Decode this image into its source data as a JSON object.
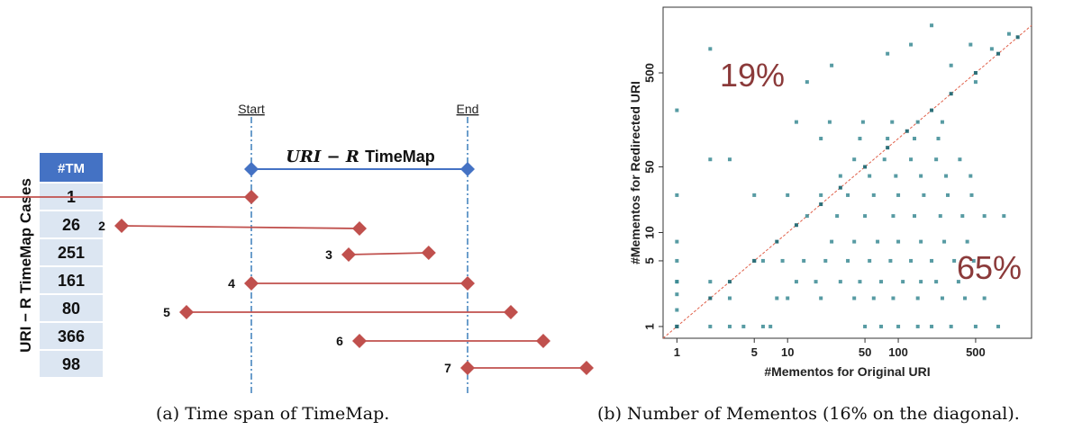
{
  "figure_a": {
    "caption": "(a) Time span of TimeMap.",
    "side_label": "URI − R TimeMap Cases",
    "side_label_var": "R",
    "start_label": "Start",
    "end_label": "End",
    "timemap_title_italic": "URI − R",
    "timemap_title_rest": "TimeMap",
    "table_header": "#TM",
    "colors": {
      "header_bg": "#4472c4",
      "cell_bg": "#dce6f2",
      "segment": "#c0504d",
      "timemap": "#4472c4",
      "guide": "#2e75b6"
    }
  },
  "figure_b": {
    "caption": "(b) Number of Mementos (16% on the diagonal).",
    "annotation_upper": "19%",
    "annotation_lower": "65%",
    "annotation_color": "#8b3a3a",
    "point_color": "#3a8a93",
    "diagonal_color": "#e0604a"
  },
  "chart_data": [
    {
      "type": "table",
      "title": "",
      "columns": [
        "Case",
        "#TM"
      ],
      "rows": [
        {
          "case": "1",
          "tm": "1",
          "seg_start": -1.2,
          "seg_end": 0.0
        },
        {
          "case": "2",
          "tm": "26",
          "seg_start": -0.6,
          "seg_end": 0.5
        },
        {
          "case": "3",
          "tm": "251",
          "seg_start": 0.45,
          "seg_end": 0.82
        },
        {
          "case": "4",
          "tm": "161",
          "seg_start": 0.0,
          "seg_end": 1.0
        },
        {
          "case": "5",
          "tm": "80",
          "seg_start": -0.3,
          "seg_end": 1.2
        },
        {
          "case": "6",
          "tm": "366",
          "seg_start": 0.5,
          "seg_end": 1.35
        },
        {
          "case": "7",
          "tm": "98",
          "seg_start": 1.0,
          "seg_end": 1.55
        }
      ],
      "timemap_span": [
        0.0,
        1.0
      ]
    },
    {
      "type": "scatter",
      "title": "",
      "xlabel": "#Mementos for Original URI",
      "ylabel": "#Mementos for Redirected URI",
      "xscale": "log",
      "yscale": "log",
      "xlim": [
        0.75,
        1600
      ],
      "ylim": [
        0.75,
        2500
      ],
      "xticks": [
        1,
        5,
        10,
        50,
        100,
        500
      ],
      "yticks": [
        1,
        5,
        10,
        50,
        500
      ],
      "diagonal": true,
      "points_x": [
        1,
        1,
        1,
        1,
        1,
        1,
        2,
        2,
        2,
        3,
        5,
        3,
        10,
        15,
        25,
        80,
        130,
        200,
        300,
        450,
        500,
        700,
        1000,
        8,
        20,
        40,
        60,
        90,
        150,
        250,
        400,
        600,
        12,
        18,
        30,
        45,
        70,
        110,
        160,
        220,
        350,
        6,
        9,
        14,
        22,
        35,
        55,
        85,
        130,
        200,
        320,
        480,
        25,
        40,
        65,
        100,
        160,
        260,
        420,
        15,
        28,
        50,
        90,
        140,
        240,
        380,
        600,
        900,
        5,
        10,
        20,
        35,
        60,
        100,
        170,
        280,
        460,
        30,
        55,
        95,
        160,
        270,
        450,
        40,
        75,
        130,
        220,
        360,
        20,
        45,
        80,
        140,
        230,
        12,
        24,
        48,
        88,
        150,
        250,
        1,
        1,
        1,
        1,
        2,
        3,
        4,
        6,
        7,
        50,
        70,
        100,
        150,
        200,
        300,
        500,
        800
      ],
      "points_y": [
        1,
        3,
        5,
        8,
        25,
        200,
        900,
        60,
        3,
        2,
        5,
        60,
        2,
        400,
        600,
        800,
        1000,
        1600,
        600,
        1000,
        400,
        900,
        1300,
        2,
        2,
        2,
        2,
        2,
        2,
        2,
        2,
        2,
        3,
        3,
        3,
        3,
        3,
        3,
        3,
        3,
        3,
        5,
        5,
        5,
        5,
        5,
        5,
        5,
        5,
        5,
        5,
        5,
        8,
        8,
        8,
        8,
        8,
        8,
        8,
        15,
        15,
        15,
        15,
        15,
        15,
        15,
        15,
        15,
        25,
        25,
        25,
        25,
        25,
        25,
        25,
        25,
        25,
        40,
        40,
        40,
        40,
        40,
        40,
        60,
        60,
        60,
        60,
        60,
        100,
        100,
        100,
        100,
        100,
        150,
        150,
        150,
        150,
        150,
        150,
        1,
        1.5,
        2.2,
        3,
        1,
        1,
        1,
        1,
        1,
        1,
        1,
        1,
        1,
        1,
        1,
        1,
        1
      ]
    }
  ]
}
